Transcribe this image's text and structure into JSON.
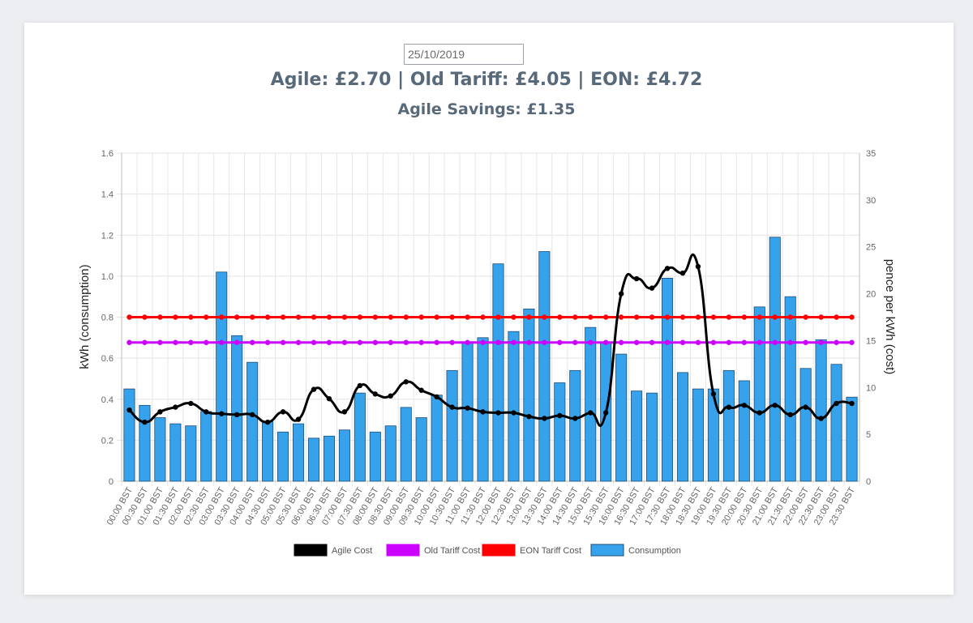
{
  "date_input": {
    "value": "25/10/2019"
  },
  "summary": {
    "costs": "Agile: £2.70 | Old Tariff: £4.05 | EON: £4.72",
    "savings": "Agile Savings: £1.35"
  },
  "chart_data": {
    "type": "bar",
    "ylabel": "kWh (consumption)",
    "y2label": "pence per kWh (cost)",
    "ylim": [
      0,
      1.6
    ],
    "y_ticks": [
      "0",
      "0.2",
      "0.4",
      "0.6",
      "0.8",
      "1.0",
      "1.2",
      "1.4",
      "1.6"
    ],
    "y2lim": [
      0,
      35
    ],
    "y2_ticks": [
      "0",
      "5",
      "10",
      "15",
      "20",
      "25",
      "30",
      "35"
    ],
    "grid": true,
    "legend_position": "bottom",
    "categories": [
      "00:00 BST",
      "00:30 BST",
      "01:00 BST",
      "01:30 BST",
      "02:00 BST",
      "02:30 BST",
      "03:00 BST",
      "03:30 BST",
      "04:00 BST",
      "04:30 BST",
      "05:00 BST",
      "05:30 BST",
      "06:00 BST",
      "06:30 BST",
      "07:00 BST",
      "07:30 BST",
      "08:00 BST",
      "08:30 BST",
      "09:00 BST",
      "09:30 BST",
      "10:00 BST",
      "10:30 BST",
      "11:00 BST",
      "11:30 BST",
      "12:00 BST",
      "12:30 BST",
      "13:00 BST",
      "13:30 BST",
      "14:00 BST",
      "14:30 BST",
      "15:00 BST",
      "15:30 BST",
      "16:00 BST",
      "16:30 BST",
      "17:00 BST",
      "17:30 BST",
      "18:00 BST",
      "18:30 BST",
      "19:00 BST",
      "19:30 BST",
      "20:00 BST",
      "20:30 BST",
      "21:00 BST",
      "21:30 BST",
      "22:00 BST",
      "22:30 BST",
      "23:00 BST",
      "23:30 BST"
    ],
    "series": [
      {
        "name": "Agile Cost",
        "axis": "right",
        "kind": "line",
        "color": "#000000",
        "values": [
          7.6,
          6.3,
          7.4,
          7.9,
          8.3,
          7.4,
          7.2,
          7.1,
          7.1,
          6.3,
          7.4,
          6.6,
          9.8,
          8.8,
          7.4,
          10.2,
          9.3,
          9.1,
          10.6,
          9.7,
          9.0,
          7.9,
          7.8,
          7.4,
          7.3,
          7.3,
          6.9,
          6.7,
          7.0,
          6.7,
          7.3,
          7.3,
          20.0,
          21.6,
          20.6,
          22.7,
          22.2,
          22.9,
          9.3,
          7.9,
          8.1,
          7.3,
          8.1,
          7.1,
          7.9,
          6.7,
          8.3,
          8.3
        ]
      },
      {
        "name": "Old Tariff Cost",
        "axis": "right",
        "kind": "line",
        "color": "#cc00ff",
        "values": [
          14.8,
          14.8,
          14.8,
          14.8,
          14.8,
          14.8,
          14.8,
          14.8,
          14.8,
          14.8,
          14.8,
          14.8,
          14.8,
          14.8,
          14.8,
          14.8,
          14.8,
          14.8,
          14.8,
          14.8,
          14.8,
          14.8,
          14.8,
          14.8,
          14.8,
          14.8,
          14.8,
          14.8,
          14.8,
          14.8,
          14.8,
          14.8,
          14.8,
          14.8,
          14.8,
          14.8,
          14.8,
          14.8,
          14.8,
          14.8,
          14.8,
          14.8,
          14.8,
          14.8,
          14.8,
          14.8,
          14.8,
          14.8
        ]
      },
      {
        "name": "EON Tariff Cost",
        "axis": "right",
        "kind": "line",
        "color": "#ff0000",
        "values": [
          17.5,
          17.5,
          17.5,
          17.5,
          17.5,
          17.5,
          17.5,
          17.5,
          17.5,
          17.5,
          17.5,
          17.5,
          17.5,
          17.5,
          17.5,
          17.5,
          17.5,
          17.5,
          17.5,
          17.5,
          17.5,
          17.5,
          17.5,
          17.5,
          17.5,
          17.5,
          17.5,
          17.5,
          17.5,
          17.5,
          17.5,
          17.5,
          17.5,
          17.5,
          17.5,
          17.5,
          17.5,
          17.5,
          17.5,
          17.5,
          17.5,
          17.5,
          17.5,
          17.5,
          17.5,
          17.5,
          17.5,
          17.5
        ]
      },
      {
        "name": "Consumption",
        "axis": "left",
        "kind": "bar",
        "color": "#36a2eb",
        "values": [
          0.45,
          0.37,
          0.31,
          0.28,
          0.27,
          0.34,
          1.02,
          0.71,
          0.58,
          0.29,
          0.24,
          0.28,
          0.21,
          0.22,
          0.25,
          0.43,
          0.24,
          0.27,
          0.36,
          0.31,
          0.42,
          0.54,
          0.68,
          0.7,
          1.06,
          0.73,
          0.84,
          1.12,
          0.48,
          0.54,
          0.75,
          0.68,
          0.62,
          0.44,
          0.43,
          0.99,
          0.53,
          0.45,
          0.45,
          0.54,
          0.49,
          0.85,
          1.19,
          0.9,
          0.55,
          0.69,
          0.57,
          0.41
        ]
      }
    ]
  }
}
